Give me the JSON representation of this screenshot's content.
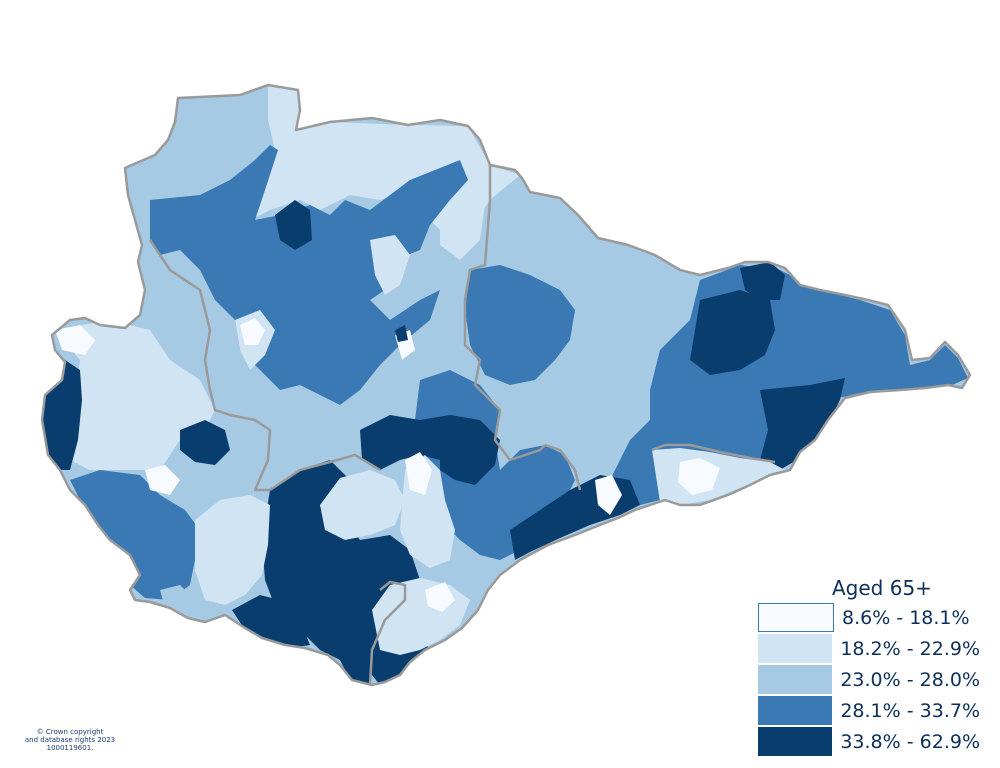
{
  "map": {
    "colors": {
      "c1": "#f7fbff",
      "c2": "#d1e4f3",
      "c3": "#a6cae4",
      "c4": "#3a79b4",
      "c5": "#083d6e",
      "border": "#9a9a9a"
    }
  },
  "legend": {
    "title": "Aged 65+",
    "items": [
      {
        "label": "8.6% - 18.1%",
        "color": "#f7fbff"
      },
      {
        "label": "18.2% - 22.9%",
        "color": "#d1e4f3"
      },
      {
        "label": "23.0% - 28.0%",
        "color": "#a6cae4"
      },
      {
        "label": "28.1% - 33.7%",
        "color": "#3a79b4"
      },
      {
        "label": "33.8% - 62.9%",
        "color": "#083d6e"
      }
    ]
  },
  "copyright": {
    "line1": "© Crown copyright",
    "line2": "and database rights 2023",
    "line3": "1000119601."
  }
}
